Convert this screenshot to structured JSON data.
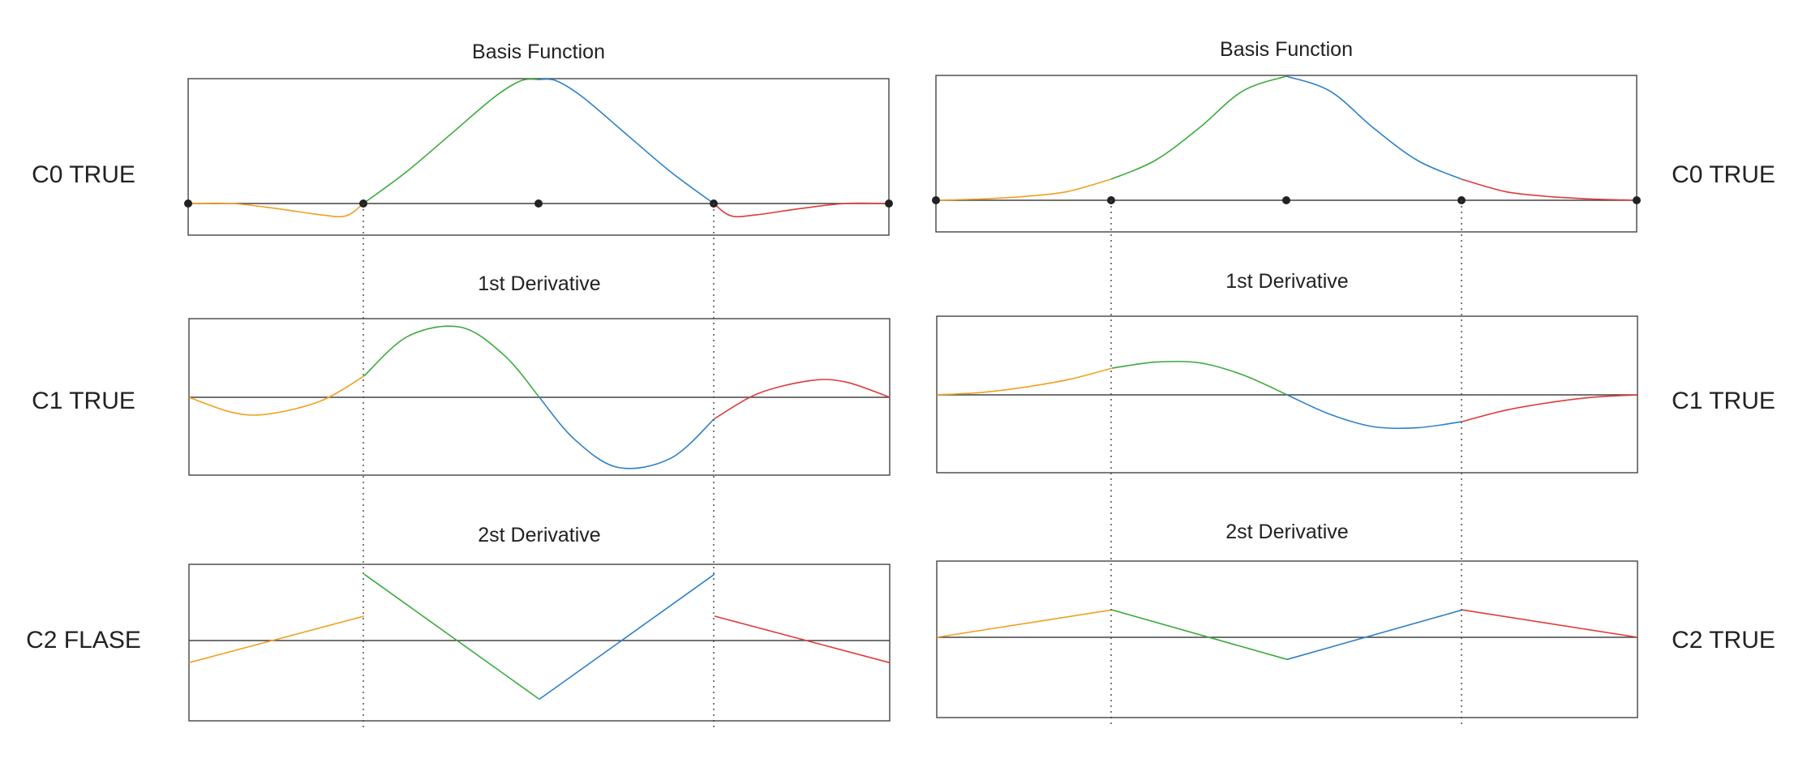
{
  "chart_data": [
    {
      "type": "line",
      "title": "Basis Function",
      "side_label": "C0 TRUE",
      "side": "left",
      "knots": [
        0,
        1,
        2,
        3,
        4
      ],
      "zero_line": true,
      "grid": false,
      "ylim": [
        -0.28,
        1.0
      ],
      "series": [
        {
          "color": "#f0a020",
          "x": [
            0,
            0.25,
            0.5,
            0.75,
            0.9,
            1
          ],
          "y": [
            0,
            0.0,
            -0.04,
            -0.09,
            -0.1,
            0
          ]
        },
        {
          "color": "#3caa3c",
          "x": [
            1,
            1.25,
            1.5,
            1.75,
            1.9,
            2
          ],
          "y": [
            0,
            0.26,
            0.56,
            0.86,
            0.99,
            1.0
          ]
        },
        {
          "color": "#2c7fc9",
          "x": [
            2,
            2.1,
            2.25,
            2.5,
            2.75,
            3
          ],
          "y": [
            1.0,
            0.99,
            0.86,
            0.56,
            0.26,
            0
          ]
        },
        {
          "color": "#e03a3a",
          "x": [
            3,
            3.1,
            3.25,
            3.5,
            3.75,
            4
          ],
          "y": [
            0,
            -0.1,
            -0.09,
            -0.04,
            0.0,
            0
          ]
        }
      ]
    },
    {
      "type": "line",
      "title": "1st Derivative",
      "side_label": "C1 TRUE",
      "side": "left",
      "knots": [
        0,
        1,
        2,
        3,
        4
      ],
      "zero_line": true,
      "grid": false,
      "ylim": [
        -1.3,
        1.3
      ],
      "series": [
        {
          "color": "#f0a020",
          "x": [
            0,
            0.25,
            0.45,
            0.75,
            1
          ],
          "y": [
            0,
            -0.2,
            -0.22,
            -0.05,
            0.28
          ]
        },
        {
          "color": "#3caa3c",
          "x": [
            1,
            1.25,
            1.55,
            1.8,
            2
          ],
          "y": [
            0.28,
            0.8,
            0.92,
            0.55,
            0
          ]
        },
        {
          "color": "#2c7fc9",
          "x": [
            2,
            2.2,
            2.45,
            2.75,
            3
          ],
          "y": [
            0,
            -0.55,
            -0.92,
            -0.8,
            -0.28
          ]
        },
        {
          "color": "#e03a3a",
          "x": [
            3,
            3.25,
            3.55,
            3.75,
            4
          ],
          "y": [
            -0.28,
            0.05,
            0.22,
            0.2,
            0
          ]
        }
      ]
    },
    {
      "type": "line",
      "title": "2st Derivative",
      "side_label": "C2 FLASE",
      "side": "left",
      "knots": [
        0,
        1,
        2,
        3,
        4
      ],
      "zero_line": true,
      "grid": false,
      "ylim": [
        -1.3,
        1.3
      ],
      "series": [
        {
          "color": "#f0a020",
          "x": [
            0,
            1
          ],
          "y": [
            -0.29,
            0.32
          ]
        },
        {
          "color": "#3caa3c",
          "x": [
            1,
            2
          ],
          "y": [
            0.87,
            -0.77
          ]
        },
        {
          "color": "#2c7fc9",
          "x": [
            2,
            3
          ],
          "y": [
            -0.77,
            0.87
          ]
        },
        {
          "color": "#e03a3a",
          "x": [
            3,
            4
          ],
          "y": [
            0.32,
            -0.29
          ]
        }
      ]
    },
    {
      "type": "line",
      "title": "Basis Function",
      "side_label": "C0 TRUE",
      "side": "right",
      "knots": [
        0,
        1,
        2,
        3,
        4
      ],
      "zero_line": true,
      "grid": false,
      "ylim": [
        -0.28,
        1.0
      ],
      "series": [
        {
          "color": "#f0a020",
          "x": [
            0,
            0.25,
            0.5,
            0.75,
            1
          ],
          "y": [
            0,
            0.01,
            0.03,
            0.07,
            0.17
          ]
        },
        {
          "color": "#3caa3c",
          "x": [
            1,
            1.25,
            1.5,
            1.75,
            2
          ],
          "y": [
            0.17,
            0.32,
            0.58,
            0.88,
            1.0
          ]
        },
        {
          "color": "#2c7fc9",
          "x": [
            2,
            2.25,
            2.5,
            2.75,
            3
          ],
          "y": [
            1.0,
            0.88,
            0.58,
            0.32,
            0.17
          ]
        },
        {
          "color": "#e03a3a",
          "x": [
            3,
            3.25,
            3.5,
            3.75,
            4
          ],
          "y": [
            0.17,
            0.07,
            0.03,
            0.01,
            0
          ]
        }
      ]
    },
    {
      "type": "line",
      "title": "1st Derivative",
      "side_label": "C1 TRUE",
      "side": "right",
      "knots": [
        0,
        1,
        2,
        3,
        4
      ],
      "zero_line": true,
      "grid": false,
      "ylim": [
        -1.3,
        1.3
      ],
      "series": [
        {
          "color": "#f0a020",
          "x": [
            0,
            0.25,
            0.5,
            0.75,
            1
          ],
          "y": [
            0,
            0.03,
            0.1,
            0.2,
            0.35
          ]
        },
        {
          "color": "#3caa3c",
          "x": [
            1,
            1.25,
            1.5,
            1.75,
            2
          ],
          "y": [
            0.35,
            0.43,
            0.42,
            0.26,
            0
          ]
        },
        {
          "color": "#2c7fc9",
          "x": [
            2,
            2.25,
            2.5,
            2.75,
            3
          ],
          "y": [
            0,
            -0.26,
            -0.42,
            -0.43,
            -0.35
          ]
        },
        {
          "color": "#e03a3a",
          "x": [
            3,
            3.25,
            3.5,
            3.75,
            4
          ],
          "y": [
            -0.35,
            -0.2,
            -0.1,
            -0.03,
            0
          ]
        }
      ]
    },
    {
      "type": "line",
      "title": "2st Derivative",
      "side_label": "C2 TRUE",
      "side": "right",
      "knots": [
        0,
        1,
        2,
        3,
        4
      ],
      "zero_line": true,
      "grid": false,
      "ylim": [
        -1.3,
        1.3
      ],
      "series": [
        {
          "color": "#f0a020",
          "x": [
            0,
            1
          ],
          "y": [
            0,
            0.36
          ]
        },
        {
          "color": "#3caa3c",
          "x": [
            1,
            2
          ],
          "y": [
            0.36,
            -0.29
          ]
        },
        {
          "color": "#2c7fc9",
          "x": [
            2,
            3
          ],
          "y": [
            -0.29,
            0.36
          ]
        },
        {
          "color": "#e03a3a",
          "x": [
            3,
            4
          ],
          "y": [
            0.36,
            0
          ]
        }
      ]
    }
  ],
  "colors": {
    "frame": "#444444",
    "text": "#222222",
    "dot": "#222222"
  }
}
